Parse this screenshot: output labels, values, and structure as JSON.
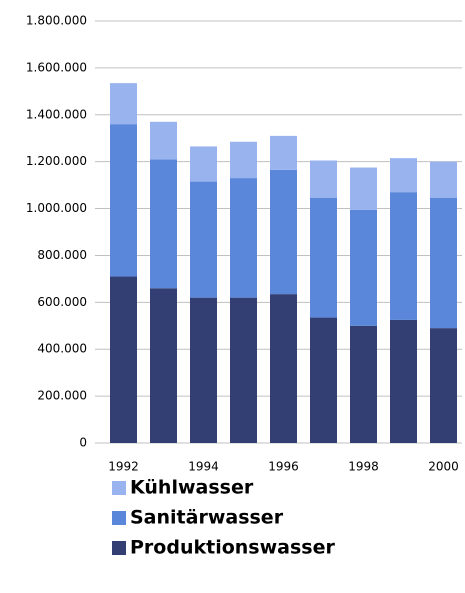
{
  "chart_data": {
    "type": "stacked_bar",
    "categories": [
      "1992",
      null,
      "1994",
      null,
      "1996",
      null,
      "1998",
      null,
      "2000"
    ],
    "series": [
      {
        "name": "Produktionswasser",
        "color": "#333e73",
        "values": [
          710000,
          660000,
          620000,
          620000,
          635000,
          535000,
          500000,
          525000,
          490000
        ]
      },
      {
        "name": "Sanitärwasser",
        "color": "#5a87d9",
        "values": [
          650000,
          550000,
          495000,
          510000,
          530000,
          510000,
          495000,
          545000,
          555000
        ]
      },
      {
        "name": "Kühlwasser",
        "color": "#99b3ef",
        "values": [
          175000,
          160000,
          150000,
          155000,
          145000,
          160000,
          180000,
          145000,
          155000
        ]
      }
    ],
    "ylim": [
      0,
      1800000
    ],
    "yticks": [
      0,
      {
        "value": 200000,
        "label": "200.000"
      },
      {
        "value": 400000,
        "label": "400.000"
      },
      {
        "value": 600000,
        "label": "600.000"
      },
      {
        "value": 800000,
        "label": "800.000"
      },
      {
        "value": 1000000,
        "label": "1.000.000"
      },
      {
        "value": 1200000,
        "label": "1.200.000"
      },
      {
        "value": 1400000,
        "label": "1.400.000"
      },
      {
        "value": 1600000,
        "label": "1.600.000"
      },
      {
        "value": 1800000,
        "label": "1.800.000"
      }
    ],
    "grid": true
  }
}
